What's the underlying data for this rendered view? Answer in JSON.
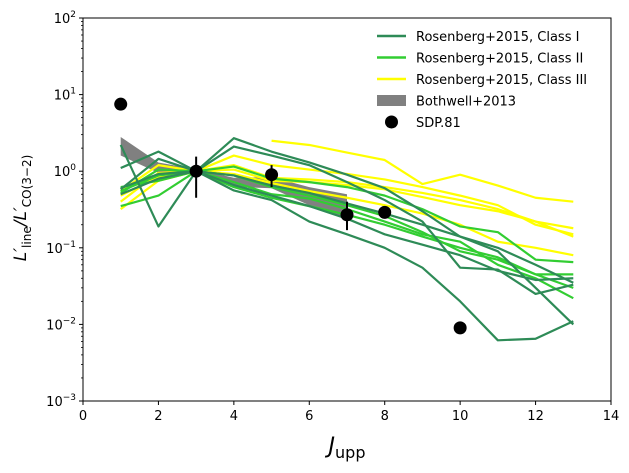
{
  "chart_data": {
    "type": "line",
    "xlabel_main": "J",
    "xlabel_sub": "upp",
    "ylabel": "L′line/L′CO(3−2)",
    "ylabel_main": "L′",
    "ylabel_sub1": "line",
    "ylabel_mid": "/L′",
    "ylabel_sub2": "CO(3−2)",
    "xlim": [
      0,
      14
    ],
    "ylim": [
      0.001,
      100
    ],
    "yscale": "log",
    "grid": false,
    "legend_placement": "top-right",
    "x_ticks": [
      0,
      2,
      4,
      6,
      8,
      10,
      12,
      14
    ],
    "y_ticks": [
      {
        "value": 0.001,
        "base": "10",
        "exp": "−3"
      },
      {
        "value": 0.01,
        "base": "10",
        "exp": "−2"
      },
      {
        "value": 0.1,
        "base": "10",
        "exp": "−1"
      },
      {
        "value": 1,
        "base": "10",
        "exp": "0"
      },
      {
        "value": 10,
        "base": "10",
        "exp": "1"
      },
      {
        "value": 100,
        "base": "10",
        "exp": "2"
      }
    ],
    "colors": {
      "class_i": "#2e8b57",
      "class_ii": "#32cd32",
      "class_iii": "#ffff00",
      "bothwell": "#808080",
      "sdp": "#000000"
    },
    "legend": [
      {
        "label": "Rosenberg+2015, Class I",
        "kind": "line",
        "color": "#2e8b57"
      },
      {
        "label": "Rosenberg+2015, Class II",
        "kind": "line",
        "color": "#32cd32"
      },
      {
        "label": "Rosenberg+2015, Class III",
        "kind": "line",
        "color": "#ffff00"
      },
      {
        "label": "Bothwell+2013",
        "kind": "patch",
        "color": "#808080"
      },
      {
        "label": "SDP.81",
        "kind": "marker",
        "color": "#000000"
      }
    ],
    "series": [
      {
        "group": "class_iii",
        "x": [
          5,
          6,
          7,
          8,
          9,
          10,
          11,
          12,
          13
        ],
        "y": [
          2.5,
          2.2,
          1.75,
          1.4,
          0.68,
          0.9,
          0.65,
          0.45,
          0.4
        ]
      },
      {
        "group": "class_iii",
        "x": [
          1,
          2,
          3,
          4,
          5,
          6,
          7,
          8,
          9,
          10,
          11,
          12,
          13
        ],
        "y": [
          0.32,
          0.75,
          1.0,
          1.2,
          0.82,
          0.78,
          0.72,
          0.62,
          0.52,
          0.42,
          0.32,
          0.22,
          0.14
        ]
      },
      {
        "group": "class_iii",
        "x": [
          1,
          2,
          3,
          4,
          5,
          6,
          7,
          8,
          9,
          10,
          11,
          12,
          13
        ],
        "y": [
          0.55,
          1.2,
          1.0,
          1.6,
          1.2,
          1.05,
          0.92,
          0.78,
          0.62,
          0.48,
          0.36,
          0.2,
          0.15
        ]
      },
      {
        "group": "class_iii",
        "x": [
          1,
          2,
          3,
          4,
          5,
          6,
          7,
          8,
          9,
          10,
          11,
          12,
          13
        ],
        "y": [
          0.4,
          0.95,
          1.0,
          1.05,
          0.75,
          0.72,
          0.66,
          0.58,
          0.46,
          0.36,
          0.3,
          0.22,
          0.18
        ]
      },
      {
        "group": "class_iii",
        "x": [
          1,
          2,
          3,
          4,
          5,
          6,
          7,
          8,
          9,
          10,
          11,
          12,
          13
        ],
        "y": [
          0.48,
          0.85,
          1.0,
          0.92,
          0.7,
          0.55,
          0.45,
          0.36,
          0.28,
          0.2,
          0.12,
          0.1,
          0.08
        ]
      },
      {
        "group": "class_ii",
        "x": [
          1,
          2,
          3,
          4,
          5,
          6,
          7,
          8,
          9,
          10,
          11,
          12,
          13
        ],
        "y": [
          0.35,
          0.48,
          1.0,
          0.62,
          0.45,
          0.35,
          0.27,
          0.2,
          0.14,
          0.1,
          0.075,
          0.045,
          0.03
        ]
      },
      {
        "group": "class_ii",
        "x": [
          1,
          2,
          3,
          4,
          5,
          6,
          7,
          8,
          9,
          10,
          11,
          12,
          13
        ],
        "y": [
          0.52,
          1.05,
          1.0,
          1.15,
          0.8,
          0.72,
          0.62,
          0.48,
          0.32,
          0.19,
          0.16,
          0.07,
          0.065
        ]
      },
      {
        "group": "class_ii",
        "x": [
          1,
          2,
          3,
          4,
          5,
          6,
          7,
          8,
          9,
          10,
          11,
          12,
          13
        ],
        "y": [
          0.62,
          0.75,
          1.0,
          0.88,
          0.62,
          0.48,
          0.36,
          0.26,
          0.16,
          0.09,
          0.07,
          0.045,
          0.045
        ]
      },
      {
        "group": "class_ii",
        "x": [
          1,
          2,
          3,
          4,
          5,
          6,
          7,
          8,
          9,
          10,
          11,
          12,
          13
        ],
        "y": [
          0.55,
          0.88,
          1.0,
          0.72,
          0.5,
          0.44,
          0.32,
          0.22,
          0.15,
          0.12,
          0.06,
          0.04,
          0.022
        ]
      },
      {
        "group": "class_i",
        "x": [
          1,
          2,
          3,
          4,
          5,
          6,
          7,
          8,
          9,
          10,
          11,
          12,
          13
        ],
        "y": [
          2.2,
          0.19,
          1.0,
          2.7,
          1.8,
          1.3,
          0.9,
          0.6,
          0.3,
          0.14,
          0.1,
          0.06,
          0.035
        ]
      },
      {
        "group": "class_i",
        "x": [
          1,
          2,
          3,
          4,
          5,
          6,
          7,
          8,
          9,
          10,
          11,
          12,
          13
        ],
        "y": [
          1.1,
          1.8,
          1.0,
          0.56,
          0.42,
          0.22,
          0.15,
          0.1,
          0.055,
          0.02,
          0.0062,
          0.0065,
          0.011
        ]
      },
      {
        "group": "class_i",
        "x": [
          1,
          2,
          3,
          4,
          5,
          6,
          7,
          8,
          9,
          10,
          11,
          12,
          13
        ],
        "y": [
          0.58,
          1.45,
          1.0,
          2.1,
          1.6,
          1.2,
          0.72,
          0.42,
          0.22,
          0.055,
          0.052,
          0.025,
          0.033
        ]
      },
      {
        "group": "class_i",
        "x": [
          1,
          2,
          3,
          4,
          5,
          6,
          7,
          8,
          9,
          10,
          11,
          12,
          13
        ],
        "y": [
          0.6,
          0.92,
          1.0,
          0.88,
          0.65,
          0.52,
          0.38,
          0.28,
          0.2,
          0.14,
          0.09,
          0.03,
          0.01
        ]
      },
      {
        "group": "class_i",
        "x": [
          1,
          2,
          3,
          4,
          5,
          6,
          7,
          8,
          9,
          10,
          11,
          12,
          13
        ],
        "y": [
          0.5,
          0.8,
          1.0,
          0.66,
          0.48,
          0.35,
          0.24,
          0.15,
          0.11,
          0.08,
          0.05,
          0.038,
          0.04
        ]
      }
    ],
    "bothwell_band": {
      "x": [
        1,
        2,
        3,
        4,
        5,
        6,
        7
      ],
      "y_low": [
        1.6,
        0.95,
        0.95,
        0.62,
        0.6,
        0.36,
        0.24
      ],
      "y_high": [
        2.8,
        1.3,
        1.06,
        0.82,
        0.84,
        0.62,
        0.5
      ]
    },
    "sdp81": [
      {
        "x": 1,
        "y": 7.5
      },
      {
        "x": 3,
        "y": 1.0,
        "err_low": 0.45,
        "err_high": 1.55
      },
      {
        "x": 5,
        "y": 0.9,
        "err_low": 0.62,
        "err_high": 1.2
      },
      {
        "x": 7,
        "y": 0.27,
        "err_low": 0.17,
        "err_high": 0.4
      },
      {
        "x": 8,
        "y": 0.29
      },
      {
        "x": 10,
        "y": 0.009
      }
    ]
  }
}
